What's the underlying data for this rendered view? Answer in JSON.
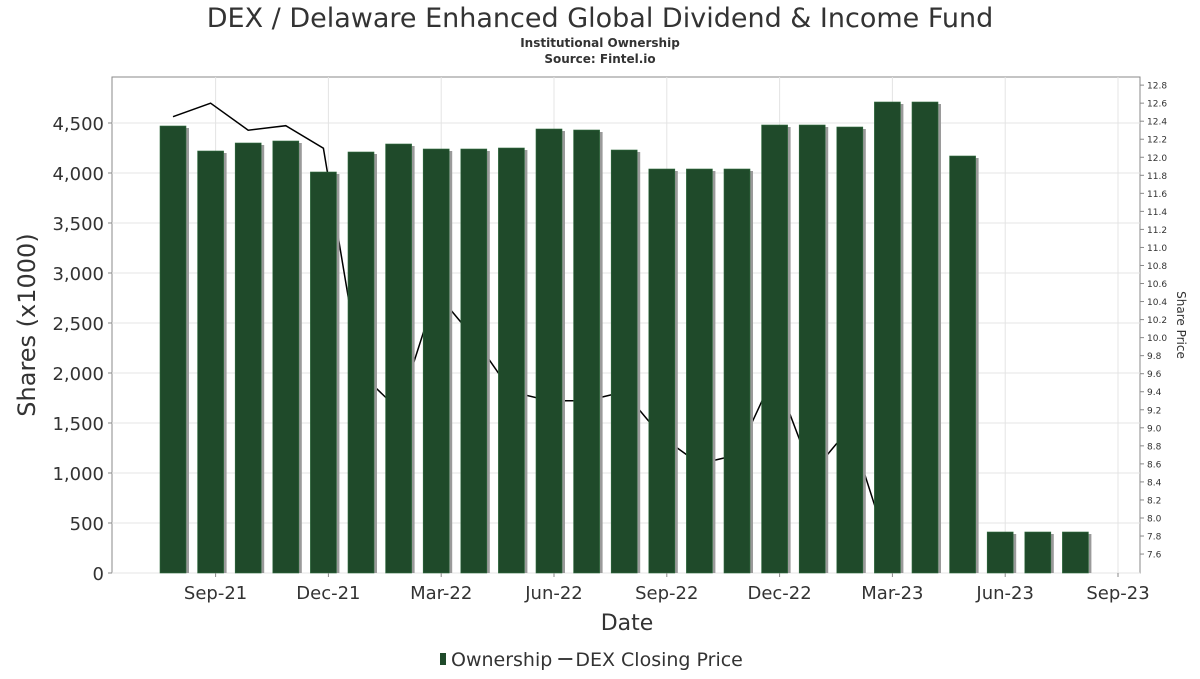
{
  "chart_data": {
    "type": "bar",
    "title": "DEX / Delaware Enhanced Global Dividend & Income Fund",
    "subtitle": "Institutional Ownership",
    "source": "Source: Fintel.io",
    "x_label": "Date",
    "y_label": "Shares (x1000)",
    "y2_label": "Share Price",
    "x": [
      "2021-08",
      "2021-09",
      "2021-10",
      "2021-11",
      "2021-12",
      "2022-01",
      "2022-02",
      "2022-03",
      "2022-04",
      "2022-05",
      "2022-06",
      "2022-07",
      "2022-08",
      "2022-09",
      "2022-10",
      "2022-11",
      "2022-12",
      "2023-01",
      "2023-02",
      "2023-03",
      "2023-04",
      "2023-05",
      "2023-06",
      "2023-07",
      "2023-08"
    ],
    "series": [
      {
        "name": "Ownership",
        "color": "#1f4a2a",
        "values": [
          4470,
          4220,
          4300,
          4320,
          4010,
          4210,
          4290,
          4240,
          4240,
          4250,
          4440,
          4430,
          4230,
          4040,
          4040,
          4040,
          4480,
          4480,
          4460,
          4710,
          4710,
          4170,
          410,
          410,
          410
        ]
      },
      {
        "name": "DEX Closing Price",
        "color": "#000000",
        "axis": "y2",
        "type": "line",
        "x": [
          "2021-08",
          "2021-09",
          "2021-10",
          "2021-11",
          "2021-12",
          "2022-01",
          "2022-02",
          "2022-03",
          "2022-04",
          "2022-05",
          "2022-06",
          "2022-07",
          "2022-08",
          "2022-09",
          "2022-10",
          "2022-11",
          "2022-12",
          "2023-01",
          "2023-02",
          "2023-03"
        ],
        "values": [
          12.45,
          12.6,
          12.3,
          12.35,
          12.1,
          9.6,
          9.2,
          10.5,
          10.0,
          9.4,
          9.3,
          9.3,
          9.4,
          8.9,
          8.6,
          8.7,
          9.6,
          8.5,
          9.0,
          7.7
        ]
      }
    ],
    "ylim": [
      0,
      4960
    ],
    "yticks": [
      0,
      500,
      {
        "value": 1000,
        "label": "1,000"
      },
      {
        "value": 1500,
        "label": "1,500"
      },
      {
        "value": 2000,
        "label": "2,000"
      },
      {
        "value": 2500,
        "label": "2,500"
      },
      {
        "value": 3000,
        "label": "3,000"
      },
      {
        "value": 3500,
        "label": "3,500"
      },
      {
        "value": 4000,
        "label": "4,000"
      },
      {
        "value": 4500,
        "label": "4,500"
      }
    ],
    "y2lim": [
      7.39,
      12.89
    ],
    "y2ticks": [
      7.6,
      7.8,
      {
        "value": 8,
        "label": "8.0"
      },
      8.2,
      8.4,
      8.6,
      8.8,
      {
        "value": 9,
        "label": "9.0"
      },
      9.2,
      9.4,
      9.6,
      9.8,
      {
        "value": 10,
        "label": "10.0"
      },
      10.2,
      10.4,
      10.6,
      10.8,
      {
        "value": 11,
        "label": "11.0"
      },
      11.2,
      11.4,
      11.6,
      11.8,
      {
        "value": 12,
        "label": "12.0"
      },
      12.2,
      12.4,
      12.6,
      12.8
    ],
    "xticks": [
      {
        "value": "2021-09",
        "label": "Sep-21"
      },
      {
        "value": "2021-12",
        "label": "Dec-21"
      },
      {
        "value": "2022-03",
        "label": "Mar-22"
      },
      {
        "value": "2022-06",
        "label": "Jun-22"
      },
      {
        "value": "2022-09",
        "label": "Sep-22"
      },
      {
        "value": "2022-12",
        "label": "Dec-22"
      },
      {
        "value": "2023-03",
        "label": "Mar-23"
      },
      {
        "value": "2023-06",
        "label": "Jun-23"
      },
      {
        "value": "2023-09",
        "label": "Sep-23"
      }
    ],
    "grid": true,
    "legend": "bottom"
  }
}
